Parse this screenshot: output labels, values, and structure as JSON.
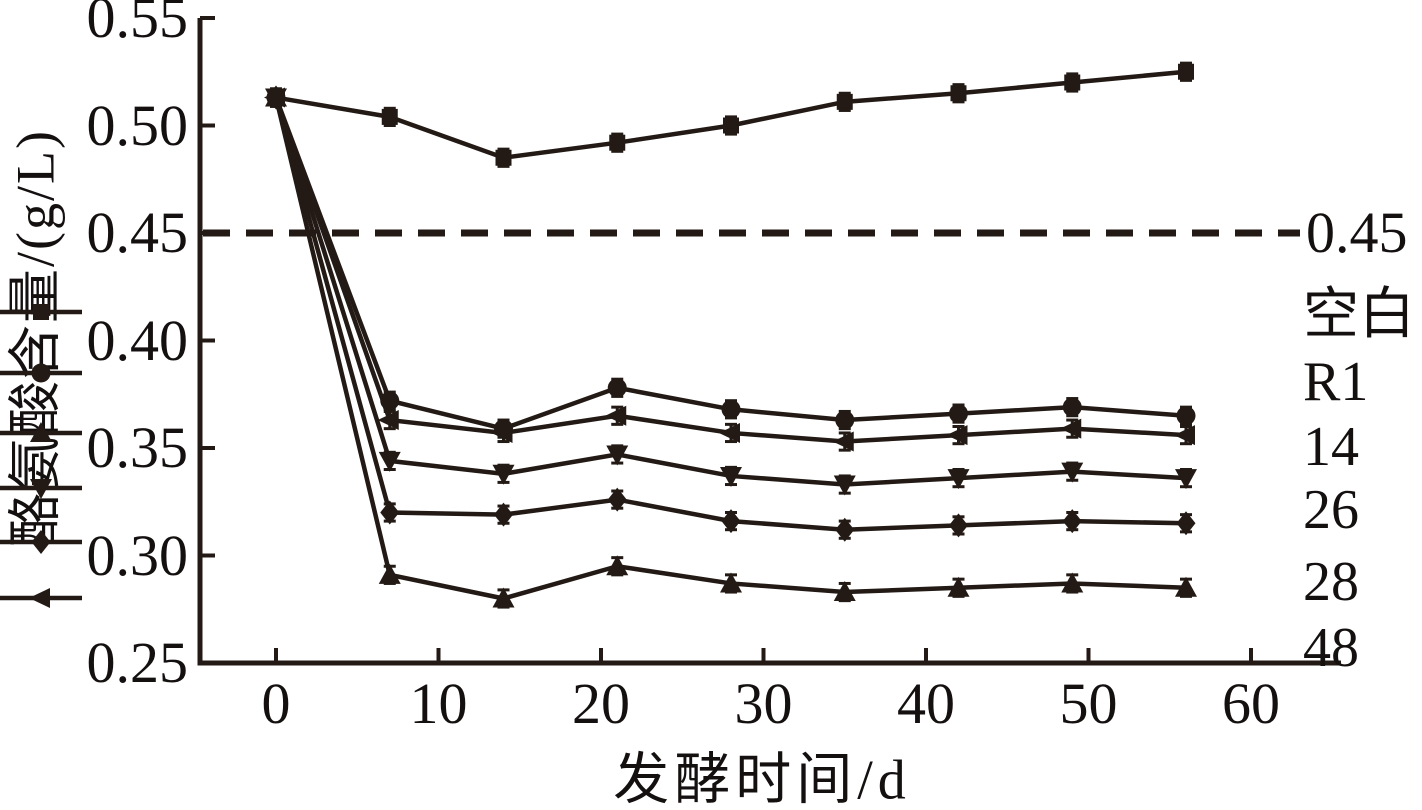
{
  "figure": {
    "background": "#ffffff",
    "ink_color": "#231a15",
    "text_color": "#151010"
  },
  "chart_data": {
    "type": "line",
    "title": "",
    "xlabel": "发酵时间/d",
    "ylabel": "酪氨酸含量/(g/L)",
    "x": [
      0,
      7,
      14,
      21,
      28,
      35,
      42,
      49,
      56
    ],
    "xlim": [
      -5,
      66
    ],
    "ylim": [
      0.25,
      0.55
    ],
    "grid": false,
    "legend_position": "right",
    "error_bar_halfwidth": 0.004,
    "x_axis_ticks": [
      {
        "value": 0,
        "label": "0"
      },
      {
        "value": 10,
        "label": "10"
      },
      {
        "value": 20,
        "label": "20"
      },
      {
        "value": 30,
        "label": "30"
      },
      {
        "value": 40,
        "label": "40"
      },
      {
        "value": 50,
        "label": "50"
      },
      {
        "value": 60,
        "label": "60"
      }
    ],
    "y_axis_ticks": [
      {
        "value": 0.55,
        "label": "0.55"
      },
      {
        "value": 0.5,
        "label": "0.50"
      },
      {
        "value": 0.45,
        "label": "0.45"
      },
      {
        "value": 0.4,
        "label": "0.40"
      },
      {
        "value": 0.35,
        "label": "0.35"
      },
      {
        "value": 0.3,
        "label": "0.30"
      },
      {
        "value": 0.25,
        "label": "0.25"
      }
    ],
    "reference_line": {
      "value": 0.45,
      "label": "0.45",
      "style": "dashed"
    },
    "series": [
      {
        "name": "空白",
        "marker": "square",
        "values": [
          0.513,
          0.504,
          0.485,
          0.492,
          0.5,
          0.511,
          0.515,
          0.52,
          0.525
        ]
      },
      {
        "name": "R1",
        "marker": "circle",
        "values": [
          0.513,
          0.372,
          0.359,
          0.378,
          0.368,
          0.363,
          0.366,
          0.369,
          0.365
        ]
      },
      {
        "name": "14",
        "marker": "triangle-up",
        "values": [
          0.513,
          0.291,
          0.28,
          0.295,
          0.287,
          0.283,
          0.285,
          0.287,
          0.285
        ]
      },
      {
        "name": "26",
        "marker": "triangle-down",
        "values": [
          0.513,
          0.344,
          0.338,
          0.347,
          0.337,
          0.333,
          0.336,
          0.339,
          0.336
        ]
      },
      {
        "name": "28",
        "marker": "diamond",
        "values": [
          0.513,
          0.32,
          0.319,
          0.326,
          0.316,
          0.312,
          0.314,
          0.316,
          0.315
        ]
      },
      {
        "name": "48",
        "marker": "triangle-left",
        "values": [
          0.513,
          0.363,
          0.357,
          0.365,
          0.357,
          0.353,
          0.356,
          0.359,
          0.356
        ]
      }
    ]
  }
}
